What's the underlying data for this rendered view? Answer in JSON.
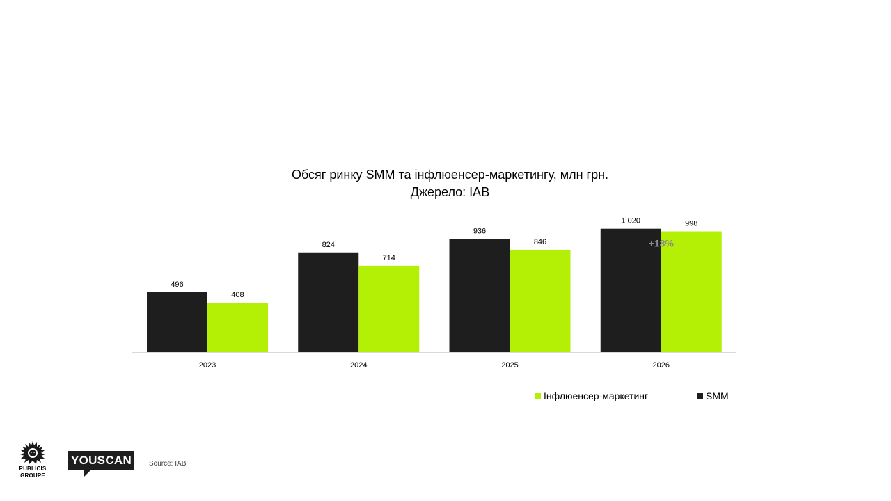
{
  "chart_data": {
    "type": "bar",
    "title": "Обсяг ринку SMM та інфлюенсер-маркетингу, млн грн.",
    "subtitle": "Джерело: IAB",
    "categories": [
      "2023",
      "2024",
      "2025",
      "2026"
    ],
    "series": [
      {
        "name": "SMM",
        "color": "#1e1e1e",
        "values": [
          496,
          824,
          936,
          1020
        ],
        "labels": [
          "496",
          "824",
          "936",
          "1 020"
        ]
      },
      {
        "name": "Інфлюенсер-маркетинг",
        "color": "#b3f005",
        "values": [
          408,
          714,
          846,
          998
        ],
        "labels": [
          "408",
          "714",
          "846",
          "998"
        ]
      }
    ],
    "ylim": [
      0,
      1070
    ],
    "grid": false,
    "legend_position": "bottom-right",
    "annotations": [
      {
        "category": "2026",
        "text": "+18%",
        "color": "#8a8a8a"
      }
    ]
  },
  "legend": {
    "influencer_label": "Інфлюенсер-маркетинг",
    "smm_label": "SMM"
  },
  "footer": {
    "source": "Source: IAB",
    "publicis_logo_line1": "PUBLICIS",
    "publicis_logo_line2": "GROUPE",
    "youscan_logo": "YOUSCAN"
  }
}
